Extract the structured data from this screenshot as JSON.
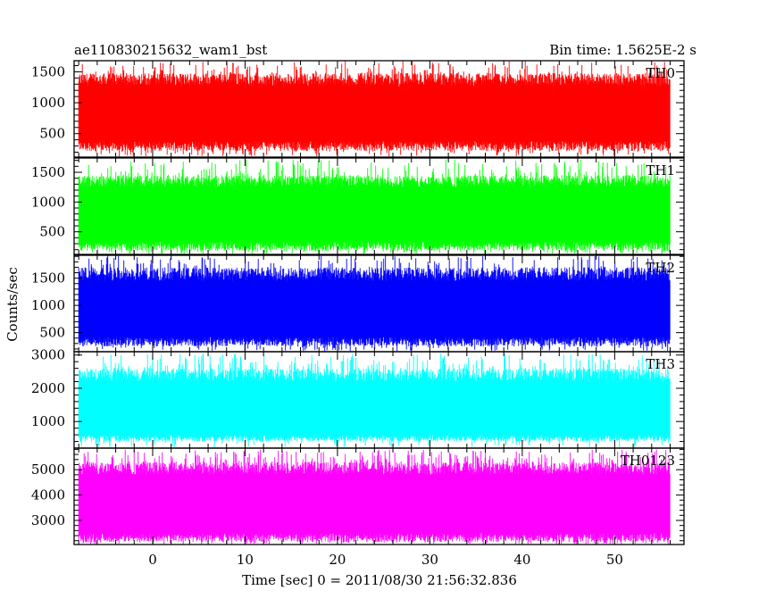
{
  "header": {
    "title": "ae110830215632_wam1_bst",
    "bin_time": "Bin time: 1.5625E-2 s"
  },
  "chart_data": {
    "type": "line",
    "shared_x": {
      "label": "Time [sec] 0 = 2011/08/30 21:56:32.836",
      "range": [
        -8.5,
        57.5
      ],
      "major_ticks": [
        0,
        10,
        20,
        30,
        40,
        50
      ],
      "minor_step": 2,
      "data_start": -8.0,
      "data_end": 56.0
    },
    "ylabel": "Counts/sec",
    "panels": [
      {
        "name": "TH0",
        "color": "#ff0000",
        "ylim": [
          120,
          1680
        ],
        "major_ticks": [
          500,
          1000,
          1500
        ],
        "minor_step": 100,
        "base": [
          220,
          380
        ],
        "peak": [
          1250,
          1680
        ],
        "typical_hi": [
          1280,
          1480
        ]
      },
      {
        "name": "TH1",
        "color": "#00ff00",
        "ylim": [
          120,
          1740
        ],
        "major_ticks": [
          500,
          1000,
          1500
        ],
        "minor_step": 100,
        "base": [
          180,
          340
        ],
        "peak": [
          1300,
          1720
        ],
        "typical_hi": [
          1250,
          1450
        ]
      },
      {
        "name": "TH2",
        "color": "#0000ff",
        "ylim": [
          150,
          1920
        ],
        "major_ticks": [
          500,
          1000,
          1500
        ],
        "minor_step": 100,
        "base": [
          250,
          420
        ],
        "peak": [
          1500,
          1920
        ],
        "typical_hi": [
          1450,
          1700
        ]
      },
      {
        "name": "TH3",
        "color": "#00ffff",
        "ylim": [
          200,
          3100
        ],
        "major_ticks": [
          1000,
          2000,
          3000
        ],
        "minor_step": 200,
        "base": [
          400,
          600
        ],
        "peak": [
          2500,
          3050
        ],
        "typical_hi": [
          2200,
          2600
        ]
      },
      {
        "name": "TH0123",
        "color": "#ff00ff",
        "ylim": [
          2050,
          5850
        ],
        "major_ticks": [
          3000,
          4000,
          5000
        ],
        "minor_step": 200,
        "base": [
          2150,
          2500
        ],
        "peak": [
          5200,
          5800
        ],
        "typical_hi": [
          4800,
          5300
        ]
      }
    ]
  }
}
